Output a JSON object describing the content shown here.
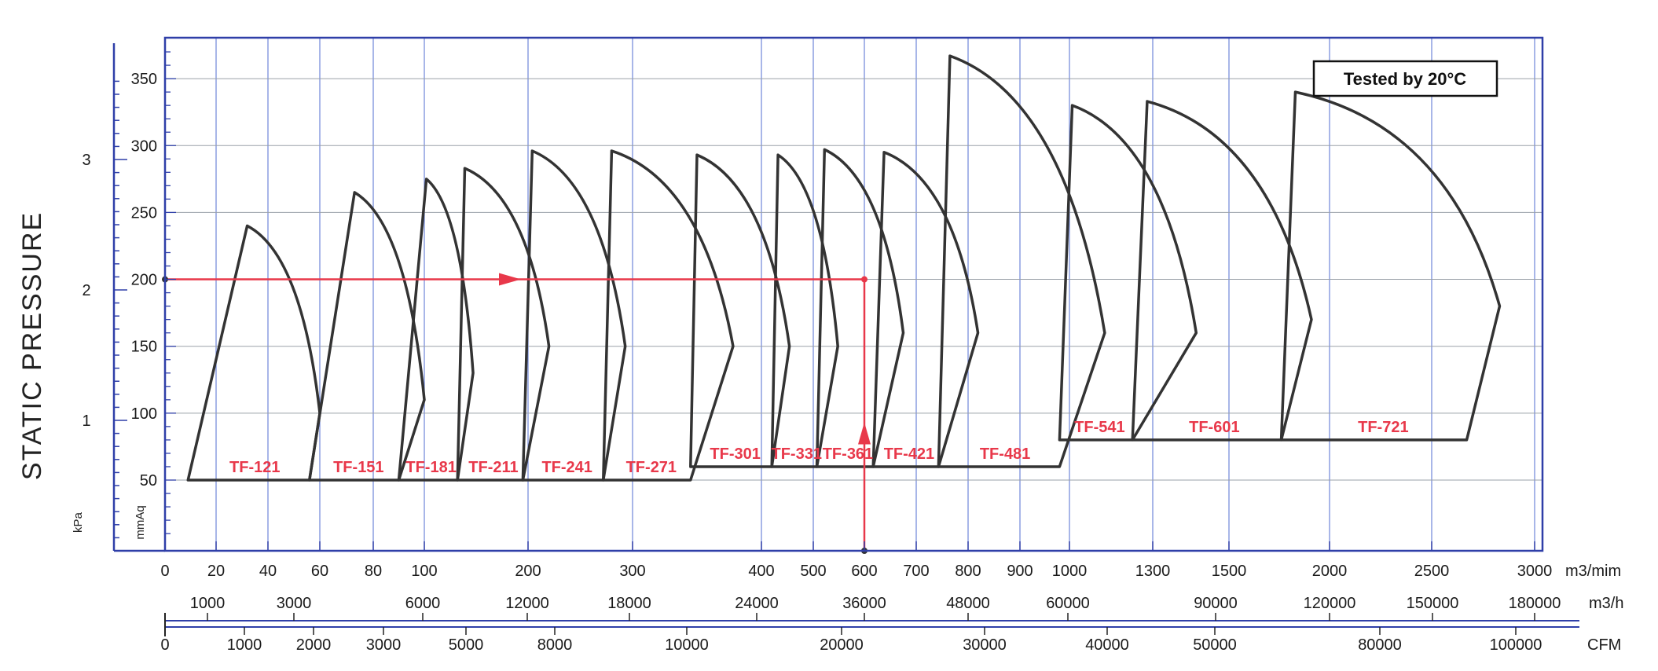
{
  "chart_data": {
    "type": "line",
    "ylabel": "STATIC PRESSURE",
    "note": "Tested by 20°C",
    "y_mmaq_ticks": [
      "50",
      "100",
      "150",
      "200",
      "250",
      "300",
      "350"
    ],
    "y_kpa_ticks": [
      "1",
      "2",
      "3"
    ],
    "y_kpa_unit": "kPa",
    "y_mmaq_unit": "mmAq",
    "x_m3min": {
      "unit": "m3/mim",
      "ticks": [
        "0",
        "20",
        "40",
        "60",
        "80",
        "100",
        "200",
        "300",
        "400",
        "500",
        "600",
        "700",
        "800",
        "900",
        "1000",
        "1300",
        "1500",
        "2000",
        "2500",
        "3000"
      ]
    },
    "x_m3h": {
      "unit": "m3/h",
      "ticks": [
        "1000",
        "3000",
        "6000",
        "12000",
        "18000",
        "24000",
        "36000",
        "48000",
        "60000",
        "90000",
        "120000",
        "150000",
        "180000"
      ]
    },
    "x_cfm": {
      "unit": "CFM",
      "ticks": [
        "0",
        "1000",
        "2000",
        "3000",
        "5000",
        "8000",
        "10000",
        "20000",
        "30000",
        "40000",
        "50000",
        "80000",
        "100000"
      ]
    },
    "series": [
      {
        "name": "TF-121",
        "points": [
          [
            9,
            50
          ],
          [
            32,
            240
          ],
          [
            60,
            100
          ],
          [
            56,
            50
          ]
        ]
      },
      {
        "name": "TF-151",
        "points": [
          [
            56,
            50
          ],
          [
            73,
            265
          ],
          [
            100,
            110
          ],
          [
            90,
            50
          ]
        ]
      },
      {
        "name": "TF-181",
        "points": [
          [
            90,
            50
          ],
          [
            102,
            275
          ],
          [
            147,
            130
          ],
          [
            132,
            50
          ]
        ]
      },
      {
        "name": "TF-211",
        "points": [
          [
            132,
            50
          ],
          [
            139,
            283
          ],
          [
            220,
            150
          ],
          [
            195,
            50
          ]
        ]
      },
      {
        "name": "TF-241",
        "points": [
          [
            195,
            50
          ],
          [
            204,
            296
          ],
          [
            293,
            150
          ],
          [
            272,
            50
          ]
        ]
      },
      {
        "name": "TF-271",
        "points": [
          [
            272,
            50
          ],
          [
            280,
            296
          ],
          [
            378,
            150
          ],
          [
            345,
            50
          ]
        ]
      },
      {
        "name": "TF-301",
        "points": [
          [
            345,
            60
          ],
          [
            350,
            293
          ],
          [
            454,
            150
          ],
          [
            420,
            60
          ]
        ]
      },
      {
        "name": "TF-331",
        "points": [
          [
            420,
            60
          ],
          [
            432,
            293
          ],
          [
            548,
            150
          ],
          [
            507,
            60
          ]
        ]
      },
      {
        "name": "TF-361",
        "points": [
          [
            507,
            60
          ],
          [
            522,
            297
          ],
          [
            675,
            160
          ],
          [
            617,
            60
          ]
        ]
      },
      {
        "name": "TF-421",
        "points": [
          [
            617,
            60
          ],
          [
            638,
            295
          ],
          [
            819,
            160
          ],
          [
            743,
            60
          ]
        ]
      },
      {
        "name": "TF-481",
        "points": [
          [
            743,
            60
          ],
          [
            765,
            367
          ],
          [
            1127,
            160
          ],
          [
            980,
            60
          ]
        ]
      },
      {
        "name": "TF-541",
        "points": [
          [
            980,
            80
          ],
          [
            1010,
            330
          ],
          [
            1414,
            160
          ],
          [
            1227,
            80
          ]
        ]
      },
      {
        "name": "TF-601",
        "points": [
          [
            1227,
            80
          ],
          [
            1280,
            333
          ],
          [
            1910,
            170
          ],
          [
            1760,
            80
          ]
        ]
      },
      {
        "name": "TF-721",
        "points": [
          [
            1760,
            80
          ],
          [
            1830,
            340
          ],
          [
            2830,
            180
          ],
          [
            2670,
            80
          ]
        ]
      }
    ],
    "selection_point": {
      "flow_m3min": 600,
      "pressure_mmaq": 200
    }
  }
}
